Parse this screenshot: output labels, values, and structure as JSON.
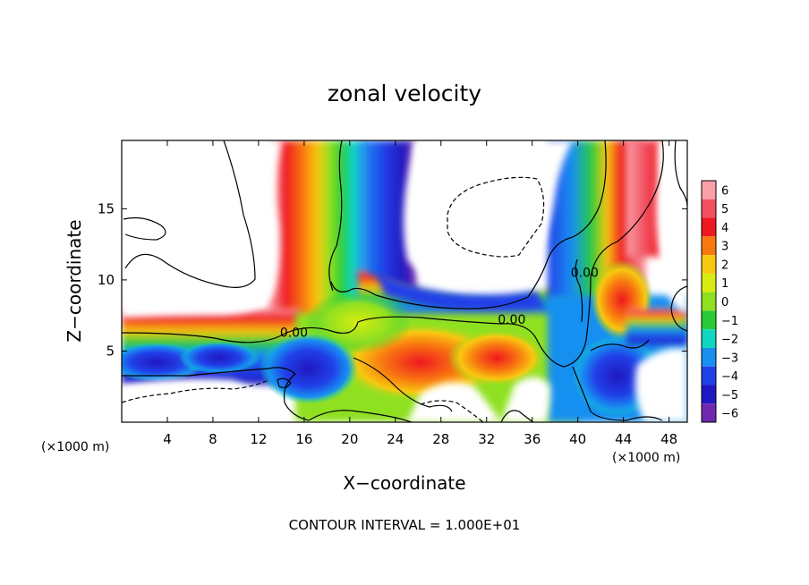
{
  "chart_data": {
    "type": "heatmap",
    "title": "zonal velocity",
    "xlabel": "X−coordinate",
    "ylabel": "Z−coordinate",
    "x_unit_label": "(×1000 m)",
    "x_unit_label_right": "(×1000 m)",
    "xlim": [
      0,
      49.6
    ],
    "ylim": [
      0,
      19.8
    ],
    "x_ticks": [
      4,
      8,
      12,
      16,
      20,
      24,
      28,
      32,
      36,
      40,
      44,
      48
    ],
    "x_tick_labels": [
      "4",
      "8",
      "12",
      "16",
      "20",
      "24",
      "28",
      "32",
      "36",
      "40",
      "44",
      "48"
    ],
    "y_ticks": [
      5,
      10,
      15
    ],
    "y_tick_labels": [
      "5",
      "10",
      "15"
    ],
    "colorbar": {
      "values": [
        6,
        5,
        4,
        3,
        2,
        1,
        0,
        -1,
        -2,
        -3,
        -4,
        -5,
        -6
      ],
      "labels": [
        "6",
        "5",
        "4",
        "3",
        "2",
        "1",
        "0",
        "−1",
        "−2",
        "−3",
        "−4",
        "−5",
        "−6"
      ],
      "colors": [
        "#f9a0a8",
        "#f25060",
        "#f01820",
        "#f87810",
        "#f8c810",
        "#d8ec10",
        "#90e020",
        "#28cc38",
        "#10d8c0",
        "#1890f0",
        "#2040e8",
        "#2018c0",
        "#7028b0"
      ]
    },
    "contour_labels": [
      {
        "text": "0.00",
        "x": 15.1,
        "y": 6.0
      },
      {
        "text": "0.00",
        "x": 34.2,
        "y": 6.9
      },
      {
        "text": "0.00",
        "x": 40.6,
        "y": 10.2
      }
    ],
    "footer": "CONTOUR INTERVAL = 1.000E+01"
  }
}
